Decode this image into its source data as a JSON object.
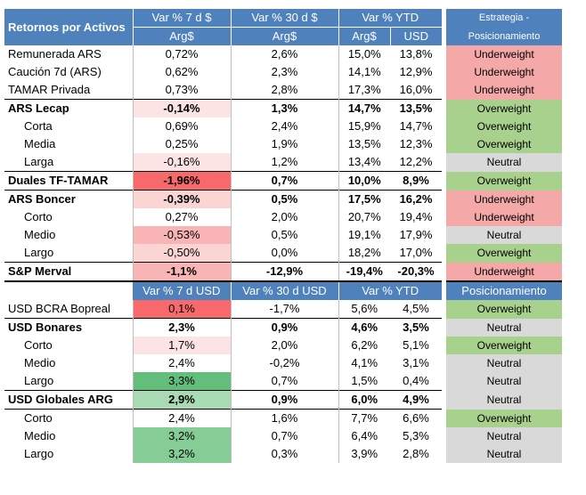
{
  "header1": {
    "title": "Retornos por Activos",
    "var7": "Var % 7 d $",
    "var30": "Var % 30 d $",
    "ytd": "Var % YTD",
    "strategy_line1": "Estrategia -",
    "strategy_line2": "Posicionamiento"
  },
  "subheader1": {
    "var7": "Arg$",
    "var30": "Arg$",
    "ytd_ars": "Arg$",
    "ytd_usd": "USD"
  },
  "header2": {
    "var7": "Var % 7 d USD",
    "var30": "Var % 30 d USD",
    "ytd": "Var % YTD",
    "stance": "Posicionamiento"
  },
  "rows1": [
    {
      "name": "Remunerada ARS",
      "v7": "0,72%",
      "v30": "2,6%",
      "ytd": "15,0%",
      "usd": "13,8%",
      "stance": "Underweight"
    },
    {
      "name": "Caución 7d (ARS)",
      "v7": "0,62%",
      "v30": "2,3%",
      "ytd": "14,1%",
      "usd": "12,9%",
      "stance": "Underweight"
    },
    {
      "name": "TAMAR Privada",
      "v7": "0,73%",
      "v30": "2,8%",
      "ytd": "17,3%",
      "usd": "16,0%",
      "stance": "Underweight"
    },
    {
      "name": "ARS Lecap",
      "v7": "-0,14%",
      "v30": "1,3%",
      "ytd": "14,7%",
      "usd": "13,5%",
      "stance": "Overweight"
    },
    {
      "name": "Corta",
      "v7": "0,69%",
      "v30": "2,4%",
      "ytd": "15,9%",
      "usd": "14,7%",
      "stance": "Overweight"
    },
    {
      "name": "Media",
      "v7": "0,25%",
      "v30": "1,9%",
      "ytd": "13,5%",
      "usd": "12,3%",
      "stance": "Overweight"
    },
    {
      "name": "Larga",
      "v7": "-0,16%",
      "v30": "1,2%",
      "ytd": "13,4%",
      "usd": "12,2%",
      "stance": "Neutral"
    },
    {
      "name": "Duales TF-TAMAR",
      "v7": "-1,96%",
      "v30": "0,7%",
      "ytd": "10,0%",
      "usd": "8,9%",
      "stance": "Overweight"
    },
    {
      "name": "ARS Boncer",
      "v7": "-0,39%",
      "v30": "0,5%",
      "ytd": "17,5%",
      "usd": "16,2%",
      "stance": "Underweight"
    },
    {
      "name": "Corto",
      "v7": "0,27%",
      "v30": "2,0%",
      "ytd": "20,7%",
      "usd": "19,4%",
      "stance": "Underweight"
    },
    {
      "name": "Medio",
      "v7": "-0,53%",
      "v30": "0,5%",
      "ytd": "19,1%",
      "usd": "17,9%",
      "stance": "Neutral"
    },
    {
      "name": "Largo",
      "v7": "-0,50%",
      "v30": "0,0%",
      "ytd": "18,2%",
      "usd": "17,0%",
      "stance": "Overweight"
    },
    {
      "name": "S&P Merval",
      "v7": "-1,1%",
      "v30": "-12,9%",
      "ytd": "-19,4%",
      "usd": "-20,3%",
      "stance": "Underweight"
    }
  ],
  "rows2": [
    {
      "name": "USD BCRA Bopreal",
      "v7": "0,1%",
      "v30": "-1,7%",
      "ytd": "5,6%",
      "usd": "4,5%",
      "stance": "Overweight"
    },
    {
      "name": "USD Bonares",
      "v7": "2,3%",
      "v30": "0,9%",
      "ytd": "4,6%",
      "usd": "3,5%",
      "stance": "Neutral"
    },
    {
      "name": "Corto",
      "v7": "1,7%",
      "v30": "2,0%",
      "ytd": "6,2%",
      "usd": "5,1%",
      "stance": "Overweight"
    },
    {
      "name": "Medio",
      "v7": "2,4%",
      "v30": "-0,2%",
      "ytd": "4,1%",
      "usd": "3,1%",
      "stance": "Neutral"
    },
    {
      "name": "Largo",
      "v7": "3,3%",
      "v30": "0,7%",
      "ytd": "1,5%",
      "usd": "0,4%",
      "stance": "Neutral"
    },
    {
      "name": "USD Globales ARG",
      "v7": "2,9%",
      "v30": "0,9%",
      "ytd": "6,0%",
      "usd": "4,9%",
      "stance": "Neutral"
    },
    {
      "name": "Corto",
      "v7": "2,4%",
      "v30": "1,6%",
      "ytd": "7,7%",
      "usd": "6,6%",
      "stance": "Overweight"
    },
    {
      "name": "Medio",
      "v7": "3,2%",
      "v30": "0,7%",
      "ytd": "6,4%",
      "usd": "5,3%",
      "stance": "Neutral"
    },
    {
      "name": "Largo",
      "v7": "3,2%",
      "v30": "0,3%",
      "ytd": "3,9%",
      "usd": "2,8%",
      "stance": "Neutral"
    }
  ],
  "colors": {
    "header_bg": "#4f81bd",
    "underweight": "#f4a8a8",
    "overweight": "#a9d18e",
    "neutral": "#d9d9d9",
    "heat_red": "#f8696b",
    "heat_green": "#63be7b"
  }
}
